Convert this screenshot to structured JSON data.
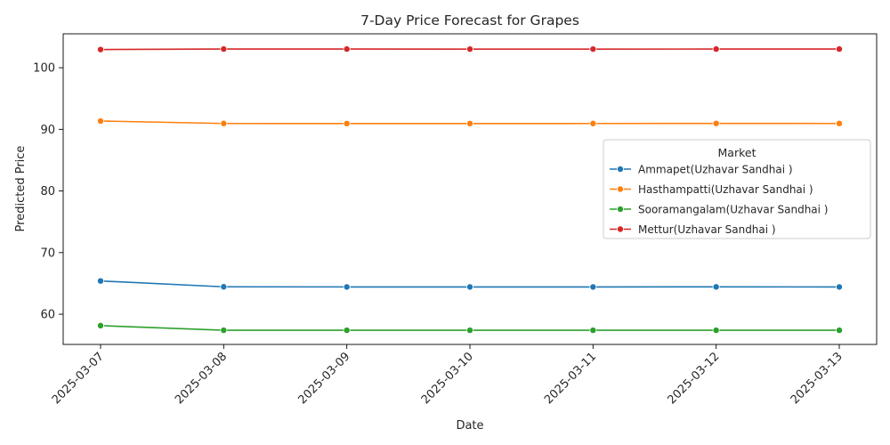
{
  "chart_data": {
    "type": "line",
    "title": "7-Day Price Forecast for Grapes",
    "xlabel": "Date",
    "ylabel": "Predicted Price",
    "x": [
      "2025-03-07",
      "2025-03-08",
      "2025-03-09",
      "2025-03-10",
      "2025-03-11",
      "2025-03-12",
      "2025-03-13"
    ],
    "ylim": [
      55.1,
      105.5
    ],
    "yticks": [
      60,
      70,
      80,
      90,
      100
    ],
    "grid": false,
    "legend": {
      "title": "Market",
      "position": "center-right"
    },
    "series": [
      {
        "name": "Ammapet(Uzhavar Sandhai )",
        "color": "#1f77b4",
        "values": [
          65.4,
          64.45,
          64.43,
          64.43,
          64.43,
          64.44,
          64.43
        ]
      },
      {
        "name": "Hasthampatti(Uzhavar Sandhai )",
        "color": "#ff7f0e",
        "values": [
          91.35,
          90.95,
          90.94,
          90.94,
          90.95,
          90.96,
          90.95
        ]
      },
      {
        "name": "Sooramangalam(Uzhavar Sandhai )",
        "color": "#2ca02c",
        "values": [
          58.15,
          57.4,
          57.4,
          57.4,
          57.4,
          57.4,
          57.4
        ]
      },
      {
        "name": "Mettur(Uzhavar Sandhai )",
        "color": "#d62728",
        "values": [
          102.95,
          103.03,
          103.03,
          103.02,
          103.02,
          103.03,
          103.03
        ]
      }
    ]
  }
}
